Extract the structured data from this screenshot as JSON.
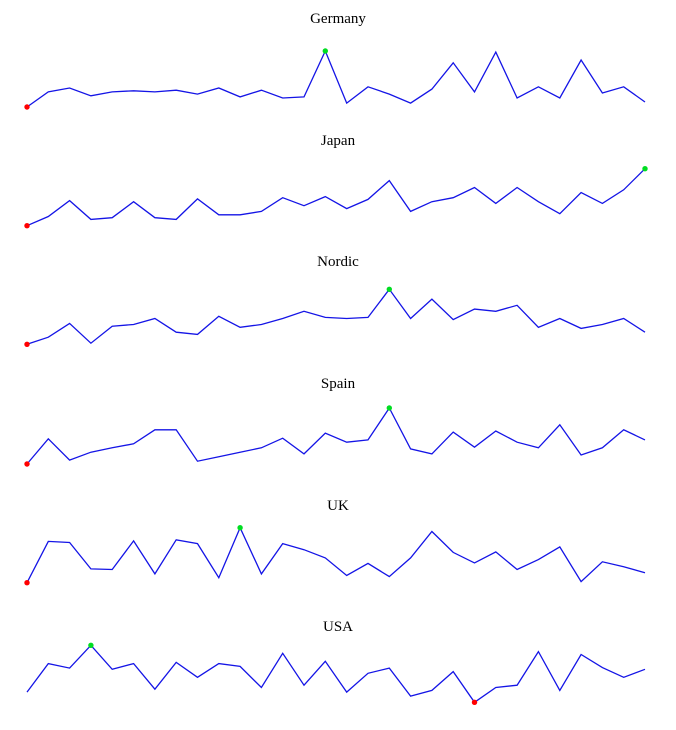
{
  "colors": {
    "line": "#1414e6",
    "min_marker": "#ff0000",
    "max_marker": "#00dd22",
    "background": "#ffffff",
    "title_text": "#000000"
  },
  "chart_data": [
    {
      "type": "line",
      "title": "Germany",
      "x": [
        1,
        2,
        3,
        4,
        5,
        6,
        7,
        8,
        9,
        10,
        11,
        12,
        13,
        14,
        15,
        16,
        17,
        18,
        19,
        20,
        21,
        22,
        23,
        24,
        25,
        26,
        27,
        28,
        29,
        30
      ],
      "values": [
        0,
        27,
        34,
        20,
        27,
        29,
        27,
        30,
        23,
        34,
        18,
        30,
        16,
        18,
        100,
        7,
        36,
        23,
        7,
        32,
        79,
        27,
        98,
        16,
        36,
        16,
        84,
        25,
        36,
        9
      ],
      "min_index": 0,
      "max_index": 14,
      "min_marker": "red-dot",
      "max_marker": "green-dot",
      "ylim": [
        0,
        100
      ],
      "xlabel": "",
      "ylabel": "",
      "grid": false,
      "axes_shown": false,
      "legend": false
    },
    {
      "type": "line",
      "title": "Japan",
      "x": [
        1,
        2,
        3,
        4,
        5,
        6,
        7,
        8,
        9,
        10,
        11,
        12,
        13,
        14,
        15,
        16,
        17,
        18,
        19,
        20,
        21,
        22,
        23,
        24,
        25,
        26,
        27,
        28,
        29,
        30
      ],
      "values": [
        0,
        16,
        44,
        11,
        14,
        42,
        14,
        11,
        47,
        19,
        19,
        25,
        49,
        35,
        51,
        30,
        46,
        79,
        25,
        42,
        49,
        67,
        39,
        67,
        42,
        21,
        58,
        39,
        63,
        100
      ],
      "min_index": 0,
      "max_index": 29,
      "min_marker": "red-dot",
      "max_marker": "green-dot",
      "ylim": [
        0,
        100
      ],
      "xlabel": "",
      "ylabel": "",
      "grid": false,
      "axes_shown": false,
      "legend": false
    },
    {
      "type": "line",
      "title": "Nordic",
      "x": [
        1,
        2,
        3,
        4,
        5,
        6,
        7,
        8,
        9,
        10,
        11,
        12,
        13,
        14,
        15,
        16,
        17,
        18,
        19,
        20,
        21,
        22,
        23,
        24,
        25,
        26,
        27,
        28,
        29,
        30
      ],
      "values": [
        0,
        13,
        38,
        2,
        33,
        36,
        47,
        22,
        18,
        51,
        31,
        36,
        47,
        60,
        49,
        47,
        49,
        100,
        47,
        82,
        45,
        64,
        60,
        71,
        31,
        47,
        29,
        36,
        47,
        22
      ],
      "min_index": 0,
      "max_index": 17,
      "min_marker": "red-dot",
      "max_marker": "green-dot",
      "ylim": [
        0,
        100
      ],
      "xlabel": "",
      "ylabel": "",
      "grid": false,
      "axes_shown": false,
      "legend": false
    },
    {
      "type": "line",
      "title": "Spain",
      "x": [
        1,
        2,
        3,
        4,
        5,
        6,
        7,
        8,
        9,
        10,
        11,
        12,
        13,
        14,
        15,
        16,
        17,
        18,
        19,
        20,
        21,
        22,
        23,
        24,
        25,
        26,
        27,
        28,
        29,
        30
      ],
      "values": [
        0,
        45,
        7,
        21,
        29,
        36,
        61,
        61,
        5,
        13,
        21,
        29,
        46,
        18,
        55,
        39,
        43,
        100,
        27,
        18,
        57,
        30,
        59,
        39,
        29,
        70,
        16,
        29,
        61,
        43
      ],
      "min_index": 0,
      "max_index": 17,
      "min_marker": "red-dot",
      "max_marker": "green-dot",
      "ylim": [
        0,
        100
      ],
      "xlabel": "",
      "ylabel": "",
      "grid": false,
      "axes_shown": false,
      "legend": false
    },
    {
      "type": "line",
      "title": "UK",
      "x": [
        1,
        2,
        3,
        4,
        5,
        6,
        7,
        8,
        9,
        10,
        11,
        12,
        13,
        14,
        15,
        16,
        17,
        18,
        19,
        20,
        21,
        22,
        23,
        24,
        25,
        26,
        27,
        28,
        29,
        30
      ],
      "values": [
        0,
        75,
        73,
        25,
        24,
        76,
        16,
        78,
        71,
        9,
        100,
        16,
        71,
        60,
        45,
        13,
        35,
        11,
        45,
        93,
        55,
        36,
        56,
        24,
        42,
        65,
        2,
        38,
        29,
        18
      ],
      "min_index": 0,
      "max_index": 10,
      "min_marker": "red-dot",
      "max_marker": "green-dot",
      "ylim": [
        0,
        100
      ],
      "xlabel": "",
      "ylabel": "",
      "grid": false,
      "axes_shown": false,
      "legend": false
    },
    {
      "type": "line",
      "title": "USA",
      "x": [
        1,
        2,
        3,
        4,
        5,
        6,
        7,
        8,
        9,
        10,
        11,
        12,
        13,
        14,
        15,
        16,
        17,
        18,
        19,
        20,
        21,
        22,
        23,
        24,
        25,
        26,
        27,
        28,
        29,
        30
      ],
      "values": [
        18,
        68,
        60,
        100,
        58,
        68,
        23,
        70,
        44,
        68,
        63,
        26,
        86,
        30,
        72,
        18,
        51,
        60,
        11,
        21,
        54,
        0,
        26,
        30,
        89,
        21,
        84,
        61,
        44,
        58
      ],
      "min_index": 21,
      "max_index": 3,
      "min_marker": "red-dot",
      "max_marker": "green-dot",
      "ylim": [
        0,
        100
      ],
      "xlabel": "",
      "ylabel": "",
      "grid": false,
      "axes_shown": false,
      "legend": false
    }
  ]
}
